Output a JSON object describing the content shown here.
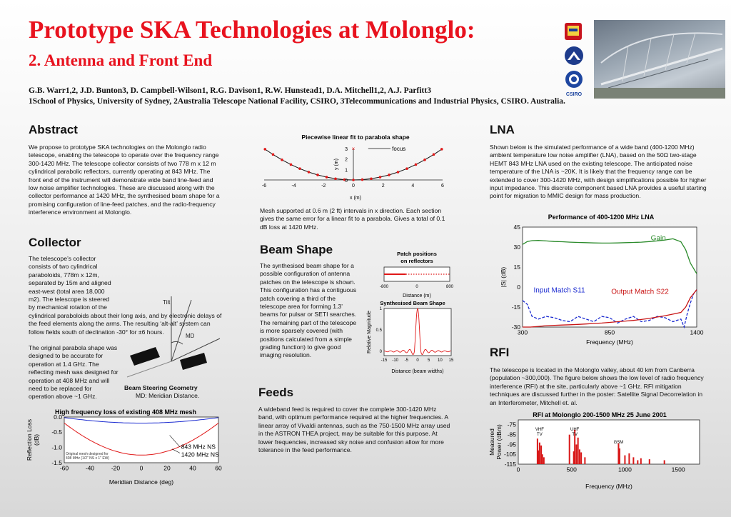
{
  "header": {
    "title": "Prototype SKA Technologies at Molonglo:",
    "subtitle": "2. Antenna and Front End",
    "authors": "G.B. Warr1,2, J.D. Bunton3, D. Campbell-Wilson1, R.G. Davison1, R.W. Hunstead1, D.A. Mitchell1,2, A.J. Parfitt3",
    "affiliations": "1School of Physics, University of Sydney, 2Australia Telescope National Facility, CSIRO, 3Telecommunications and Industrial Physics, CSIRO.  Australia.",
    "logo_label": "CSIRO"
  },
  "abstract": {
    "heading": "Abstract",
    "text": "We propose to prototype SKA technologies on the Molonglo radio telescope, enabling the telescope to operate over the frequency range 300-1420 MHz.  The telescope collector consists of two 778 m x 12 m cylindrical parabolic reflectors, currently operating at 843 MHz.  The front end of the instrument will demonstrate wide band line-feed and low noise amplifier technologies.  These are discussed along with the collector performance at 1420 MHz, the synthesised beam shape for a promising configuration of line-feed patches, and the radio-frequency interference environment at Molonglo."
  },
  "collector": {
    "heading": "Collector",
    "text1": "The telescope’s collector consists of two cylindrical paraboloids, 778m x 12m, separated by 15m and aligned east-west (total area 18,000 m2).  The telescope is steered by mechanical rotation of the cylindrical paraboloids about their long axis, and by electronic delays of the feed elements along the arms.  The resulting ‘alt-alt’ system can follow fields south of declination -30° for ±6 hours.",
    "text2": "The original parabola shape was designed to be accurate for operation at 1.4 GHz. The reflecting mesh was designed for operation at 408 MHz and will need to be replaced for operation above ~1 GHz.",
    "figure_caption": "Beam Steering Geometry",
    "figure_sub": "MD: Meridian Distance.",
    "tilt_label": "Tilt",
    "md_label": "MD"
  },
  "parabola_fig": {
    "caption": "Mesh supported at 0.6 m (2 ft) intervals in x direction. Each section gives the same error for a linear fit to a parabola. Gives a total of 0.1 dB loss at 1420 MHz."
  },
  "beam": {
    "heading": "Beam Shape",
    "text": "The synthesised beam shape for a possible configuration of antenna patches on the telescope is shown.  This configuration has a contiguous patch covering a third of the telescope area for forming 1.3’ beams for pulsar or SETI searches.  The remaining part of the telescope is more sparsely covered (with positions calculated from a simple grading function) to give good imaging resolution."
  },
  "feeds": {
    "heading": "Feeds",
    "text": "A wideband feed is required to cover the complete 300-1420 MHz band, with optimum performance required at the higher frequencies.  A linear array of Vivaldi antennas, such as the 750-1500 MHz array used in the ASTRON THEA project, may be suitable for this purpose.  At lower frequencies, increased sky noise and confusion allow for more tolerance in the feed performance."
  },
  "lna": {
    "heading": "LNA",
    "text": "Shown below is the simulated performance of a wide band (400-1200 MHz) ambient temperature low noise amplifier (LNA), based on the 50Ω two-stage HEMT 843 MHz LNA used on the existing telescope. The anticipated noise temperature of the LNA is ~20K.  It is likely that the frequency range can be extended to cover 300-1420 MHz, with design simplifications possible for higher input impedance.  This discrete component based LNA provides a useful starting point for migration to MMIC design for mass production."
  },
  "rfi": {
    "heading": "RFI",
    "text": "The telescope is located in the Molonglo valley, about 40 km from Canberra (population ~300,000).  The figure below shows the low level of radio frequency interference (RFI) at the site, particularly above ~1 GHz.  RFI mitigation techniques are discussed further in the poster: Satellite Signal Decorrelation in an Interferometer, Mitchell et. al."
  },
  "chart_data": [
    {
      "id": "parabola",
      "type": "scatter",
      "title": "Piecewise linear fit to parabola shape",
      "xlabel": "x (m)",
      "ylabel": "y (m)",
      "xlim": [
        -6,
        6
      ],
      "ylim": [
        0,
        3
      ],
      "xticks": [
        "-6",
        "-4",
        "-2",
        "0",
        "2",
        "4",
        "6"
      ],
      "yticks": [
        "0",
        "1",
        "2",
        "3"
      ],
      "legend": "focus",
      "focus": [
        0,
        3
      ],
      "x": [
        -5.94,
        -5.4,
        -4.8,
        -4.2,
        -3.6,
        -3.0,
        -2.4,
        -1.8,
        -1.2,
        -0.6,
        0,
        0.6,
        1.2,
        1.8,
        2.4,
        3.0,
        3.6,
        4.2,
        4.8,
        5.4,
        5.94
      ],
      "y": [
        2.94,
        2.43,
        1.92,
        1.47,
        1.08,
        0.75,
        0.48,
        0.27,
        0.12,
        0.03,
        0,
        0.03,
        0.12,
        0.27,
        0.48,
        0.75,
        1.08,
        1.47,
        1.92,
        2.43,
        2.94
      ]
    },
    {
      "id": "patch",
      "type": "line",
      "title": "Patch positions on reflectors",
      "xlabel": "Distance (m)",
      "xlim": [
        -800,
        800
      ],
      "xticks": [
        "-800",
        "0",
        "800"
      ],
      "segments": [
        {
          "from": -800,
          "to": -270,
          "style": "solid"
        },
        {
          "from": -270,
          "to": 800,
          "style": "dotted"
        }
      ]
    },
    {
      "id": "beam",
      "type": "line",
      "title": "Synthesised Beam Shape",
      "xlabel": "Distance (beam widths)",
      "ylabel": "Relative Magnitude",
      "xlim": [
        -15,
        15
      ],
      "ylim": [
        -0.1,
        1
      ],
      "xticks": [
        "-15",
        "-10",
        "-5",
        "0",
        "5",
        "10",
        "15"
      ],
      "yticks": [
        "0",
        "0.5",
        "1"
      ]
    },
    {
      "id": "lna",
      "type": "line",
      "title": "Performance of 400-1200 MHz LNA",
      "xlabel": "Frequency (MHz)",
      "ylabel": "|S| (dB)",
      "xlim": [
        300,
        1400
      ],
      "ylim": [
        -30,
        45
      ],
      "xticks": [
        "300",
        "850",
        "1400"
      ],
      "yticks": [
        "45",
        "30",
        "15",
        "0",
        "-15",
        "-30"
      ],
      "series": [
        {
          "name": "Gain",
          "color": "#2a8a2a",
          "x": [
            300,
            330,
            360,
            400,
            450,
            500,
            550,
            600,
            650,
            700,
            750,
            800,
            850,
            900,
            950,
            1000,
            1050,
            1100,
            1150,
            1200,
            1250,
            1300,
            1330,
            1360,
            1400
          ],
          "y": [
            32,
            34.2,
            34.8,
            35,
            34.6,
            34.2,
            34.0,
            33.7,
            33.5,
            33.3,
            33.1,
            33.0,
            33.0,
            33.1,
            33.3,
            33.5,
            33.7,
            34.1,
            34.6,
            35.3,
            36.2,
            34.0,
            28,
            18,
            10
          ]
        },
        {
          "name": "Input Match S11",
          "color": "#1a2ad0",
          "x": [
            300,
            330,
            360,
            400,
            450,
            500,
            550,
            600,
            650,
            700,
            750,
            800,
            850,
            900,
            950,
            1000,
            1050,
            1100,
            1150,
            1200,
            1250,
            1300,
            1320,
            1340,
            1360,
            1380,
            1400
          ],
          "y": [
            -10,
            -13,
            -22,
            -24,
            -22,
            -23,
            -25,
            -26,
            -22,
            -24,
            -26,
            -22,
            -23,
            -27,
            -24,
            -22,
            -26,
            -25,
            -22,
            -23,
            -26,
            -24,
            -30,
            -20,
            -12,
            -5,
            -2
          ]
        },
        {
          "name": "Output Match S22",
          "color": "#c81414",
          "x": [
            300,
            350,
            400,
            450,
            500,
            550,
            600,
            650,
            700,
            750,
            800,
            850,
            900,
            950,
            1000,
            1050,
            1100,
            1150,
            1200,
            1250,
            1300,
            1330,
            1360,
            1400
          ],
          "y": [
            -30,
            -30,
            -29.5,
            -29,
            -28.7,
            -28.5,
            -28.3,
            -28,
            -27.7,
            -27.3,
            -27,
            -26.5,
            -26,
            -25.5,
            -25,
            -24.3,
            -23.5,
            -22.5,
            -21.5,
            -20.3,
            -19,
            -15,
            -8,
            -2
          ]
        }
      ]
    },
    {
      "id": "rfi",
      "type": "bar",
      "title": "RFI at Molonglo 200-1500 MHz 25 June 2001",
      "xlabel": "Frequency (MHz)",
      "ylabel": "Measured Power (dBm)",
      "xlim": [
        0,
        1700
      ],
      "ylim": [
        -115,
        -70
      ],
      "xticks": [
        "0",
        "500",
        "1000",
        "1500"
      ],
      "yticks": [
        "-75",
        "-85",
        "-95",
        "-105",
        "-115"
      ],
      "annotations": [
        "VHF TV",
        "UHF TV",
        "GSM"
      ],
      "x": [
        180,
        190,
        200,
        215,
        226,
        240,
        480,
        520,
        530,
        545,
        560,
        575,
        590,
        625,
        940,
        950,
        1000,
        1040,
        1080,
        1120,
        1150,
        1230,
        1370
      ],
      "y": [
        -89,
        -101,
        -93,
        -96,
        -105,
        -108,
        -85,
        -102,
        -80,
        -95,
        -88,
        -100,
        -103,
        -108,
        -94,
        -99,
        -106,
        -104,
        -108,
        -111,
        -109,
        -110,
        -111
      ]
    },
    {
      "id": "loss",
      "type": "line",
      "title": "High frequency loss of existing 408 MHz mesh",
      "xlabel": "Meridian Distance (deg)",
      "ylabel": "Reflection Loss (dB)",
      "xlim": [
        -60,
        60
      ],
      "ylim": [
        -1.5,
        0
      ],
      "xticks": [
        "-60",
        "-40",
        "-20",
        "0",
        "20",
        "40",
        "60"
      ],
      "yticks": [
        "0.0",
        "-0.5",
        "-1.0",
        "-1.5"
      ],
      "note": "Original mesh designed for 408 MHz (1/2\" NS x 1\" EW)",
      "series": [
        {
          "name": "843 MHz NS",
          "color": "#1a2ad0",
          "x": [
            -60,
            -40,
            -20,
            0,
            20,
            40,
            60
          ],
          "y": [
            -0.02,
            -0.12,
            -0.17,
            -0.2,
            -0.17,
            -0.12,
            -0.02
          ]
        },
        {
          "name": "1420 MHz NS",
          "color": "#e01818",
          "x": [
            -60,
            -40,
            -20,
            0,
            20,
            40,
            60
          ],
          "y": [
            -0.2,
            -0.8,
            -1.15,
            -1.25,
            -1.15,
            -0.8,
            -0.2
          ]
        }
      ]
    }
  ]
}
